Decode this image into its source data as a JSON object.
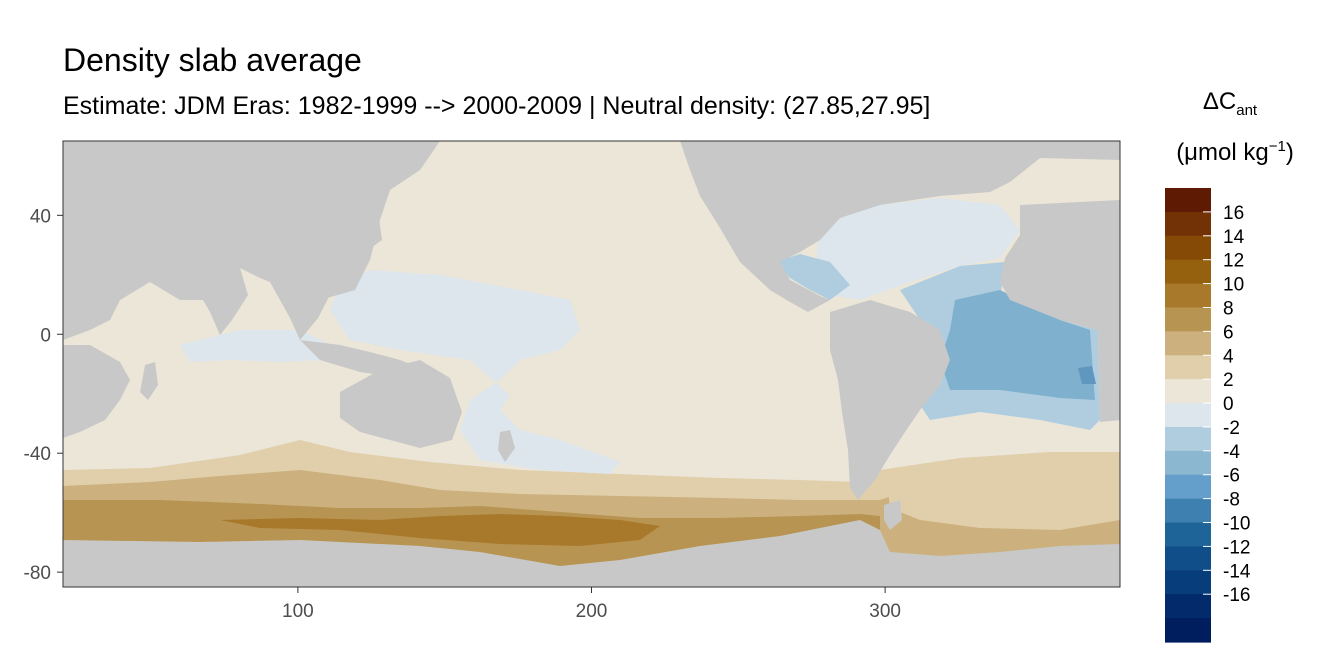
{
  "title": "Density slab average",
  "subtitle": "Estimate: JDM Eras: 1982-1999 --> 2000-2009 | Neutral density: (27.85,27.95]",
  "legend": {
    "title_symbol": "ΔC",
    "title_subscript": "ant",
    "unit_open": "(μmol kg",
    "unit_sup": "−1",
    "unit_close": ")",
    "colors": [
      "#5e1a02",
      "#733205",
      "#864a07",
      "#96610e",
      "#a8792a",
      "#b89452",
      "#ccb07e",
      "#e0cfaa",
      "#ece6d9",
      "#dce6ec",
      "#b0cddf",
      "#8bb7d1",
      "#649eca",
      "#3e80b0",
      "#1f6498",
      "#0f4e88",
      "#073d7a",
      "#032b6b",
      "#001d5e"
    ],
    "labels": [
      "16",
      "14",
      "12",
      "10",
      "8",
      "6",
      "4",
      "2",
      "0",
      "-2",
      "-4",
      "-6",
      "-8",
      "-10",
      "-12",
      "-14",
      "-16"
    ]
  },
  "axes": {
    "x_ticks": [
      100,
      200,
      300
    ],
    "y_ticks": [
      40,
      0,
      -40,
      -80
    ],
    "x_range": [
      20,
      380
    ],
    "y_range": [
      -85,
      65
    ]
  },
  "map_colors": {
    "land": "#c8c8c8",
    "ocean_neutral": "#ece6d9",
    "ocean_light_blue": "#dce6ec",
    "ocean_mid_blue": "#b0cddf",
    "ocean_blue": "#7fb0cd",
    "ocean_dark_blue": "#5f97bf",
    "tan_light": "#e0cfaa",
    "tan_mid": "#ccb07e",
    "tan_dark": "#b89452",
    "brown": "#a8792a",
    "nodata": "#ffffff"
  }
}
